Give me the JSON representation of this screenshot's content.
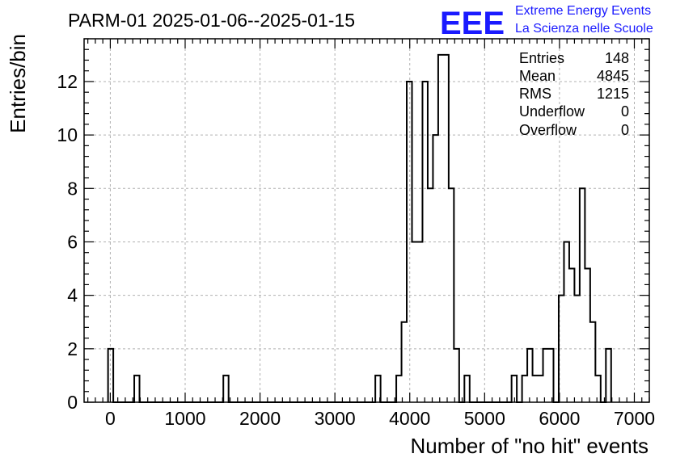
{
  "header": {
    "title": "PARM-01 2025-01-06--2025-01-15"
  },
  "logo": {
    "word": "EEE",
    "line1": "Extreme Energy Events",
    "line2": "La Scienza nelle Scuole",
    "color": "#1a1aff"
  },
  "stats": [
    {
      "label": "Entries",
      "value": "148"
    },
    {
      "label": "Mean",
      "value": "4845"
    },
    {
      "label": "RMS",
      "value": "1215"
    },
    {
      "label": "Underflow",
      "value": "0"
    },
    {
      "label": "Overflow",
      "value": "0"
    }
  ],
  "chart_data": {
    "type": "histogram",
    "xlabel": "Number of \"no hit\" events",
    "ylabel": "Entries/bin",
    "xlim": [
      -350,
      7200
    ],
    "ylim": [
      0,
      13.6
    ],
    "bin_width": 70,
    "first_bin_start": -30,
    "xticks": [
      0,
      1000,
      2000,
      3000,
      4000,
      5000,
      6000,
      7000
    ],
    "yticks": [
      0,
      2,
      4,
      6,
      8,
      10,
      12
    ],
    "grid": true,
    "line_color": "#000000",
    "counts": [
      2,
      0,
      0,
      0,
      0,
      1,
      0,
      0,
      0,
      0,
      0,
      0,
      0,
      0,
      0,
      0,
      0,
      0,
      0,
      0,
      0,
      0,
      1,
      0,
      0,
      0,
      0,
      0,
      0,
      0,
      0,
      0,
      0,
      0,
      0,
      0,
      0,
      0,
      0,
      0,
      0,
      0,
      0,
      0,
      0,
      0,
      0,
      0,
      0,
      0,
      0,
      1,
      0,
      0,
      0,
      1,
      3,
      12,
      6,
      6,
      12,
      8,
      10,
      13,
      13,
      8,
      2,
      0,
      1,
      0,
      0,
      0,
      0,
      0,
      0,
      0,
      0,
      1,
      0,
      1,
      2,
      1,
      1,
      2,
      2,
      0,
      4,
      6,
      5,
      4,
      8,
      5,
      3,
      1,
      0,
      2
    ]
  }
}
